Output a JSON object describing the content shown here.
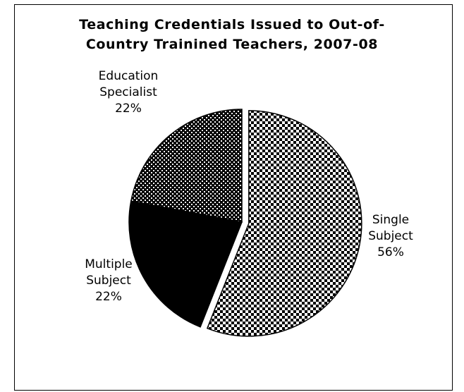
{
  "chart_data": {
    "type": "pie",
    "title_lines": [
      "Teaching Credentials Issued to Out-of-",
      "Country Trainined Teachers, 2007-08"
    ],
    "slices": [
      {
        "name": "Single Subject",
        "label_lines": [
          "Single",
          "Subject"
        ],
        "value": 56,
        "value_label": "56%",
        "pattern": "checker"
      },
      {
        "name": "Multiple Subject",
        "label_lines": [
          "Multiple",
          "Subject"
        ],
        "value": 22,
        "value_label": "22%",
        "pattern": "solid-black"
      },
      {
        "name": "Education Specialist",
        "label_lines": [
          "Education",
          "Specialist"
        ],
        "value": 22,
        "value_label": "22%",
        "pattern": "dotted"
      }
    ],
    "exploded_slice": "Single Subject",
    "legend": "none",
    "grid": false
  }
}
